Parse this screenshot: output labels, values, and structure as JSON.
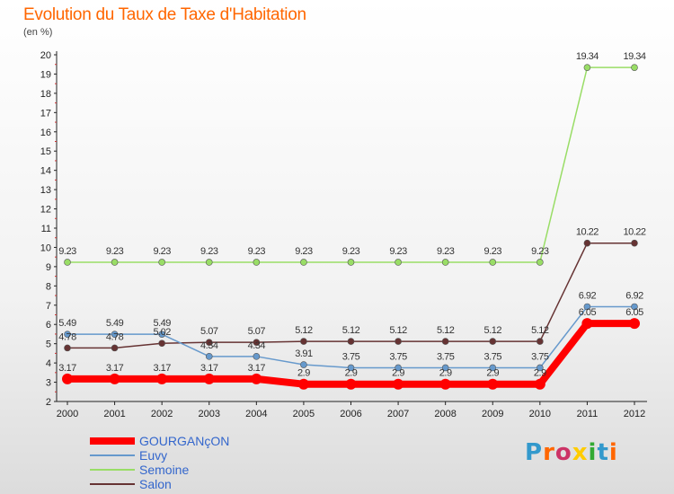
{
  "header": {
    "title": "Evolution du Taux de Taxe d'Habitation",
    "subtitle": "(en %)"
  },
  "logo": {
    "text": "Proxiti"
  },
  "chart_data": {
    "type": "line",
    "x": [
      "2000",
      "2001",
      "2002",
      "2003",
      "2004",
      "2005",
      "2006",
      "2007",
      "2008",
      "2009",
      "2010",
      "2011",
      "2012"
    ],
    "ylim": [
      2,
      20
    ],
    "yticks": [
      2,
      3,
      4,
      5,
      6,
      7,
      8,
      9,
      10,
      11,
      12,
      13,
      14,
      15,
      16,
      17,
      18,
      19,
      20
    ],
    "series": [
      {
        "name": "GOURGANçON",
        "color": "#ff0000",
        "values": [
          3.17,
          3.17,
          3.17,
          3.17,
          3.17,
          2.9,
          2.9,
          2.9,
          2.9,
          2.9,
          2.9,
          6.05,
          6.05
        ]
      },
      {
        "name": "Euvy",
        "color": "#6699cc",
        "values": [
          5.49,
          5.49,
          5.49,
          4.34,
          4.34,
          3.91,
          3.75,
          3.75,
          3.75,
          3.75,
          3.75,
          6.92,
          6.92
        ]
      },
      {
        "name": "Semoine",
        "color": "#99dd66",
        "values": [
          9.23,
          9.23,
          9.23,
          9.23,
          9.23,
          9.23,
          9.23,
          9.23,
          9.23,
          9.23,
          9.23,
          19.34,
          19.34
        ]
      },
      {
        "name": "Salon",
        "color": "#663333",
        "values": [
          4.78,
          4.78,
          5.02,
          5.07,
          5.07,
          5.12,
          5.12,
          5.12,
          5.12,
          5.12,
          5.12,
          10.22,
          10.22
        ]
      }
    ],
    "data_labels": [
      [
        "3.17",
        "3.17",
        "3.17",
        "3.17",
        "3.17",
        "2.9",
        "2.9",
        "2.9",
        "2.9",
        "2.9",
        "2.9",
        "6.05",
        "6.05"
      ],
      [
        "5.49",
        "5.49",
        "5.49",
        "4.34",
        "4.34",
        "3.91",
        "3.75",
        "3.75",
        "3.75",
        "3.75",
        "3.75",
        "6.92",
        "6.92"
      ],
      [
        "9.23",
        "9.23",
        "9.23",
        "9.23",
        "9.23",
        "9.23",
        "9.23",
        "9.23",
        "9.23",
        "9.23",
        "9.23",
        "19.34",
        "19.34"
      ],
      [
        "4.78",
        "4.78",
        "5.02",
        "5.07",
        "5.07",
        "5.12",
        "5.12",
        "5.12",
        "5.12",
        "5.12",
        "5.12",
        "10.22",
        "10.22"
      ]
    ],
    "grid": false,
    "legend": "bottom-left"
  }
}
